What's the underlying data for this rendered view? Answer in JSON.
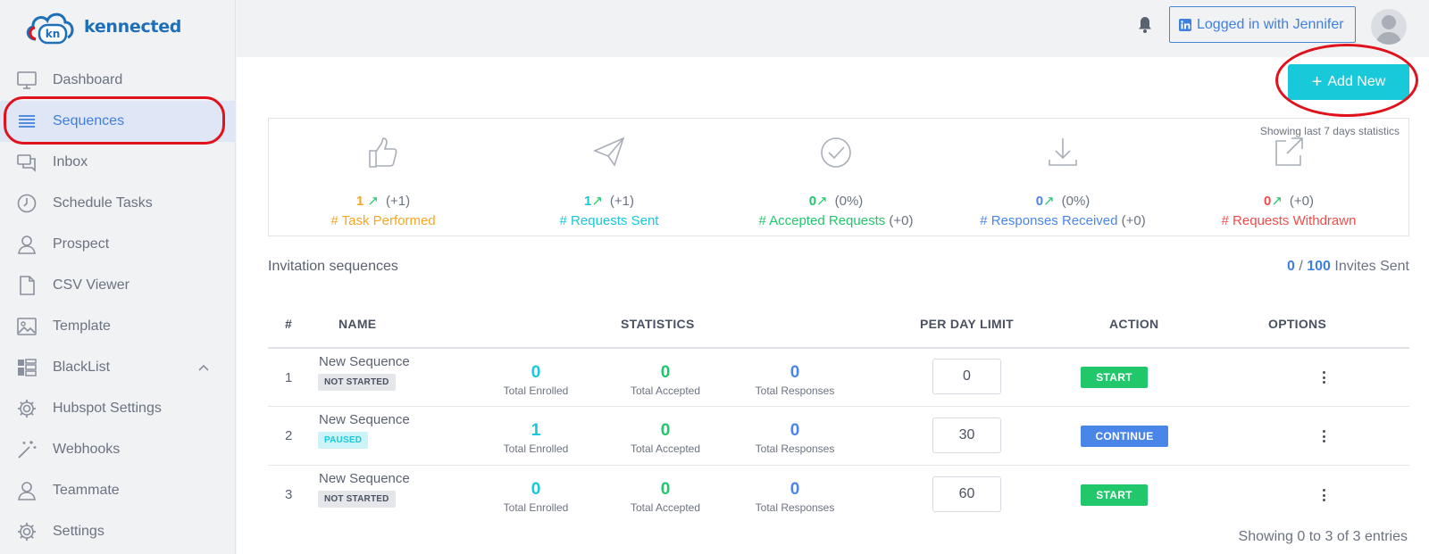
{
  "brand": {
    "logo_mark": "kn",
    "name": "kennected"
  },
  "sidebar": {
    "items": [
      {
        "label": "Dashboard",
        "icon": "monitor-icon"
      },
      {
        "label": "Sequences",
        "icon": "list-icon",
        "active": true
      },
      {
        "label": "Inbox",
        "icon": "chat-icon"
      },
      {
        "label": "Schedule Tasks",
        "icon": "clock-icon"
      },
      {
        "label": "Prospect",
        "icon": "user-icon"
      },
      {
        "label": "CSV Viewer",
        "icon": "file-icon"
      },
      {
        "label": "Template",
        "icon": "image-icon"
      },
      {
        "label": "BlackList",
        "icon": "blocks-icon",
        "expanded": true
      },
      {
        "label": "Hubspot Settings",
        "icon": "gear-icon"
      },
      {
        "label": "Webhooks",
        "icon": "magic-wand-icon"
      },
      {
        "label": "Teammate",
        "icon": "user-icon"
      },
      {
        "label": "Settings",
        "icon": "gear-icon"
      }
    ]
  },
  "header": {
    "login_label": "Logged in with Jennifer",
    "linkedin_icon": "linkedin-icon",
    "bell_icon": "bell-icon",
    "avatar_icon": "avatar-icon"
  },
  "toolbar": {
    "add_new_label": "Add New",
    "add_new_icon": "plus-icon"
  },
  "stats": {
    "note": "Showing last 7 days statistics",
    "cards": [
      {
        "value": "1",
        "percent": "(+1)",
        "caption": "# Task Performed",
        "extra": "",
        "color": "#f5a623",
        "icon": "thumbs-up-icon"
      },
      {
        "value": "1",
        "percent": "(+1)",
        "caption": "# Requests Sent",
        "extra": "",
        "color": "#17c9d9",
        "icon": "paper-plane-icon"
      },
      {
        "value": "0",
        "percent": "(0%)",
        "caption": "# Accepted Requests",
        "extra": "(+0)",
        "color": "#21c76b",
        "icon": "check-circle-icon"
      },
      {
        "value": "0",
        "percent": "(0%)",
        "caption": "# Responses Received",
        "extra": "(+0)",
        "color": "#4a86e8",
        "icon": "download-icon"
      },
      {
        "value": "0",
        "percent": "(+0)",
        "caption": "# Requests Withdrawn",
        "extra": "",
        "color": "#f24b4b",
        "icon": "external-link-icon"
      }
    ]
  },
  "section": {
    "title": "Invitation sequences",
    "invites_sent": "0",
    "invites_total": "100",
    "invites_suffix": "Invites Sent",
    "invites_sep": "/"
  },
  "table": {
    "headers": [
      "#",
      "NAME",
      "STATISTICS",
      "PER DAY LIMIT",
      "ACTION",
      "OPTIONS"
    ],
    "stat_labels": [
      "Total Enrolled",
      "Total Accepted",
      "Total Responses"
    ],
    "rows": [
      {
        "num": "1",
        "name": "New Sequence",
        "status": "NOT STARTED",
        "enrolled": "0",
        "accepted": "0",
        "responses": "0",
        "limit": "0",
        "action": "START"
      },
      {
        "num": "2",
        "name": "New Sequence",
        "status": "PAUSED",
        "enrolled": "1",
        "accepted": "0",
        "responses": "0",
        "limit": "30",
        "action": "CONTINUE"
      },
      {
        "num": "3",
        "name": "New Sequence",
        "status": "NOT STARTED",
        "enrolled": "0",
        "accepted": "0",
        "responses": "0",
        "limit": "60",
        "action": "START"
      }
    ],
    "footer": "Showing 0 to 3 of 3 entries"
  }
}
